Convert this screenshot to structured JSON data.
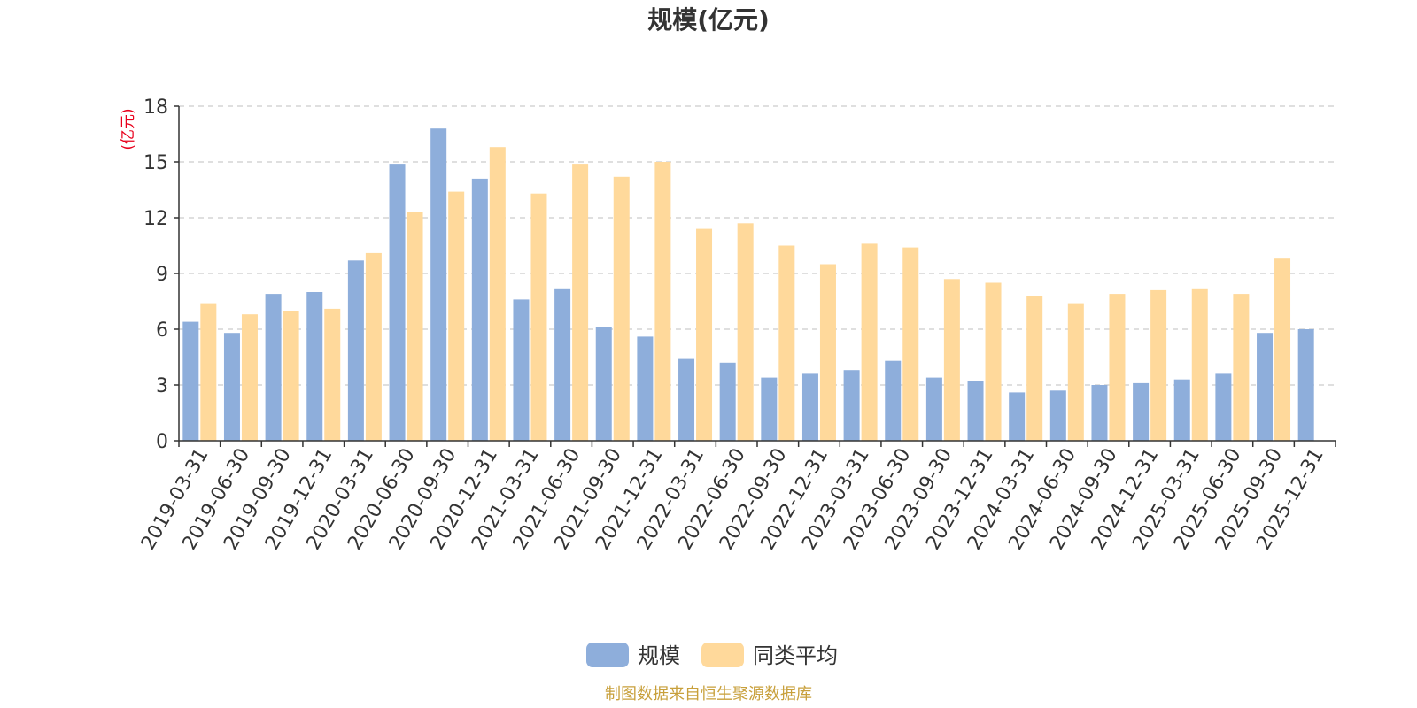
{
  "chart_data": {
    "type": "bar",
    "title": "规模(亿元)",
    "ylabel": "(亿元)",
    "ylim": [
      0,
      18
    ],
    "yticks": [
      0,
      3,
      6,
      9,
      12,
      15,
      18
    ],
    "grid": "horizontal-dashed",
    "legend_position": "bottom-center",
    "categories": [
      "2019-03-31",
      "2019-06-30",
      "2019-09-30",
      "2019-12-31",
      "2020-03-31",
      "2020-06-30",
      "2020-09-30",
      "2020-12-31",
      "2021-03-31",
      "2021-06-30",
      "2021-09-30",
      "2021-12-31",
      "2022-03-31",
      "2022-06-30",
      "2022-09-30",
      "2022-12-31",
      "2023-03-31",
      "2023-06-30",
      "2023-09-30",
      "2023-12-31",
      "2024-03-31",
      "2024-06-30",
      "2024-09-30",
      "2024-12-31",
      "2025-03-31",
      "2025-06-30",
      "2025-09-30",
      "2025-12-31"
    ],
    "series": [
      {
        "name": "规模",
        "color": "#8eaedb",
        "values": [
          6.4,
          5.8,
          7.9,
          8.0,
          9.7,
          14.9,
          16.8,
          14.1,
          7.6,
          8.2,
          6.1,
          5.6,
          4.4,
          4.2,
          3.4,
          3.6,
          3.8,
          4.3,
          3.4,
          3.2,
          2.6,
          2.7,
          3.0,
          3.1,
          3.3,
          3.6,
          5.8,
          6.0
        ]
      },
      {
        "name": "同类平均",
        "color": "#ffd99b",
        "values": [
          7.4,
          6.8,
          7.0,
          7.1,
          10.1,
          12.3,
          13.4,
          15.8,
          13.3,
          14.9,
          14.2,
          15.0,
          11.4,
          11.7,
          10.5,
          9.5,
          10.6,
          10.4,
          8.7,
          8.5,
          7.8,
          7.4,
          7.9,
          8.1,
          8.2,
          7.9,
          9.8,
          null
        ]
      }
    ],
    "source_note": "制图数据来自恒生聚源数据库",
    "colors": {
      "title": "#333333",
      "unit_label": "#e8001c",
      "source_note": "#c8a03c",
      "axis": "#333333",
      "grid": "#cccccc"
    }
  }
}
